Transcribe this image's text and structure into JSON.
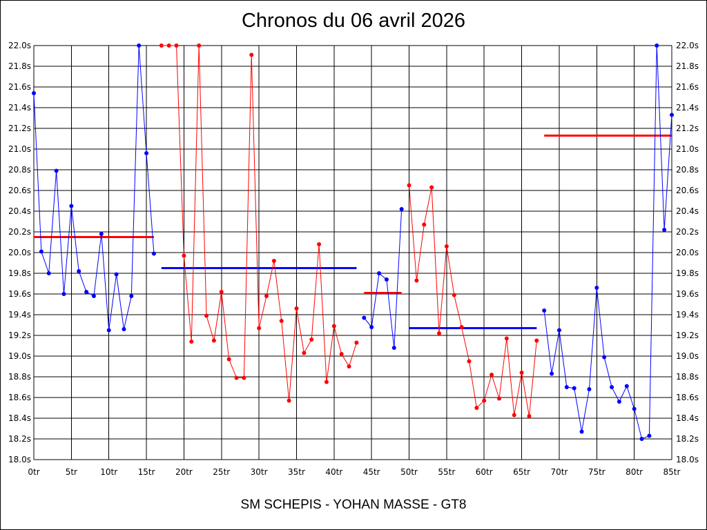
{
  "chart_data": {
    "type": "line",
    "title": "Chronos du 06 avril 2026",
    "footer": "SM SCHEPIS - YOHAN MASSE - GT8",
    "xlim": [
      0,
      85
    ],
    "ylim": [
      18.0,
      22.0
    ],
    "x_tick_labels": [
      "0tr",
      "5tr",
      "10tr",
      "15tr",
      "20tr",
      "25tr",
      "30tr",
      "35tr",
      "40tr",
      "45tr",
      "50tr",
      "55tr",
      "60tr",
      "65tr",
      "70tr",
      "75tr",
      "80tr",
      "85tr"
    ],
    "y_tick_labels": [
      "18.0s",
      "18.2s",
      "18.4s",
      "18.6s",
      "18.8s",
      "19.0s",
      "19.2s",
      "19.4s",
      "19.6s",
      "19.8s",
      "20.0s",
      "20.2s",
      "20.4s",
      "20.6s",
      "20.8s",
      "21.0s",
      "21.2s",
      "21.4s",
      "21.6s",
      "21.8s",
      "22.0s"
    ],
    "grid": true,
    "series": [
      {
        "color": "#0000ff",
        "x": [
          0,
          1,
          2,
          3,
          4,
          5,
          6,
          7,
          8,
          9,
          10,
          11,
          12,
          13,
          14,
          15,
          16
        ],
        "y": [
          21.54,
          20.01,
          19.8,
          20.79,
          19.6,
          20.45,
          19.82,
          19.62,
          19.58,
          20.18,
          19.25,
          19.79,
          19.26,
          19.58,
          22.0,
          20.96,
          19.99
        ]
      },
      {
        "color": "#ff0000",
        "x": [
          17,
          18,
          19,
          20,
          21,
          22,
          23,
          24,
          25,
          26,
          27,
          28,
          29,
          30,
          31,
          32,
          33,
          34,
          35,
          36,
          37,
          38,
          39,
          40,
          41,
          42,
          43
        ],
        "y": [
          22.0,
          22.0,
          22.0,
          19.97,
          19.14,
          22.0,
          19.39,
          19.15,
          19.62,
          18.97,
          18.79,
          18.79,
          21.91,
          19.27,
          19.58,
          19.92,
          19.34,
          18.57,
          19.46,
          19.03,
          19.16,
          20.08,
          18.75,
          19.29,
          19.02,
          18.9,
          19.13
        ]
      },
      {
        "color": "#0000ff",
        "x": [
          44,
          45,
          46,
          47,
          48,
          49
        ],
        "y": [
          19.37,
          19.28,
          19.8,
          19.74,
          19.08,
          20.42
        ]
      },
      {
        "color": "#ff0000",
        "x": [
          50,
          51,
          52,
          53,
          54,
          55,
          56,
          57,
          58,
          59,
          60,
          61,
          62,
          63,
          64,
          65,
          66,
          67
        ],
        "y": [
          20.65,
          19.73,
          20.27,
          20.63,
          19.22,
          20.06,
          19.59,
          19.28,
          18.95,
          18.5,
          18.57,
          18.82,
          18.59,
          19.17,
          18.43,
          18.84,
          18.42,
          19.15
        ]
      },
      {
        "color": "#0000ff",
        "x": [
          68,
          69,
          70,
          71,
          72,
          73,
          74,
          75,
          76,
          77,
          78,
          79,
          80,
          81,
          82,
          83,
          84,
          85
        ],
        "y": [
          19.44,
          18.83,
          19.25,
          18.7,
          18.69,
          18.27,
          18.68,
          19.66,
          18.99,
          18.7,
          18.56,
          18.71,
          18.49,
          18.2,
          18.23,
          22.0,
          20.22,
          21.33
        ]
      }
    ],
    "averages": [
      {
        "color": "#ff0000",
        "x": [
          0,
          16
        ],
        "y": 20.15
      },
      {
        "color": "#0000ff",
        "x": [
          17,
          43
        ],
        "y": 19.85
      },
      {
        "color": "#ff0000",
        "x": [
          44,
          49
        ],
        "y": 19.61
      },
      {
        "color": "#0000ff",
        "x": [
          50,
          67
        ],
        "y": 19.27
      },
      {
        "color": "#ff0000",
        "x": [
          68,
          85
        ],
        "y": 21.13
      }
    ]
  }
}
